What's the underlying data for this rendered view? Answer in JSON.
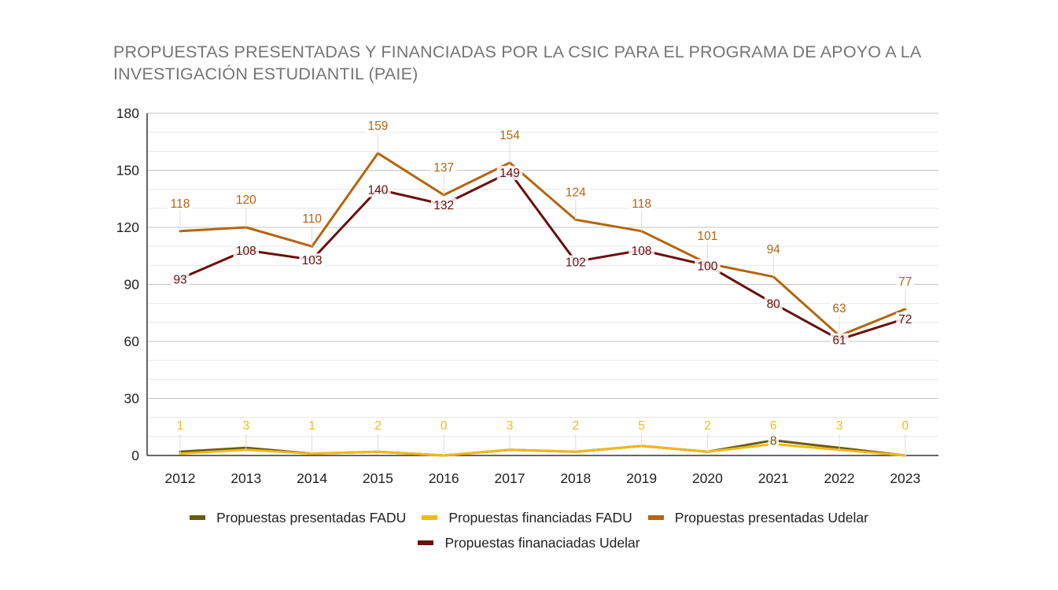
{
  "chart_data": {
    "type": "line",
    "title": "PROPUESTAS PRESENTADAS Y FINANCIADAS POR LA CSIC PARA EL PROGRAMA DE APOYO A LA INVESTIGACIÓN ESTUDIANTIL (PAIE)",
    "xlabel": "",
    "ylabel": "",
    "categories": [
      "2012",
      "2013",
      "2014",
      "2015",
      "2016",
      "2017",
      "2018",
      "2019",
      "2020",
      "2021",
      "2022",
      "2023"
    ],
    "ylim": [
      0,
      180
    ],
    "yticks": [
      "0",
      "30",
      "60",
      "90",
      "120",
      "150",
      "180"
    ],
    "grid": true,
    "legend_position": "bottom",
    "series": [
      {
        "name": "Propuestas presentadas FADU",
        "color": "#6b5a0f",
        "values": [
          2,
          4,
          1,
          2,
          0,
          3,
          2,
          5,
          2,
          8,
          4,
          0
        ],
        "labels": [
          "",
          "",
          "",
          "",
          "",
          "",
          "",
          "",
          "",
          "8",
          "",
          ""
        ]
      },
      {
        "name": "Propuestas financiadas FADU",
        "color": "#f2b816",
        "values": [
          1,
          3,
          1,
          2,
          0,
          3,
          2,
          5,
          2,
          6,
          3,
          0
        ],
        "labels": [
          "1",
          "3",
          "1",
          "2",
          "0",
          "3",
          "2",
          "5",
          "2",
          "6",
          "3",
          "0"
        ]
      },
      {
        "name": "Propuestas presentadas Udelar",
        "color": "#b5650f",
        "values": [
          118,
          120,
          110,
          159,
          137,
          154,
          124,
          118,
          101,
          94,
          63,
          77
        ],
        "labels": [
          "118",
          "120",
          "110",
          "159",
          "137",
          "154",
          "124",
          "118",
          "101",
          "94",
          "63",
          "77"
        ]
      },
      {
        "name": "Propuestas finanaciadas Udelar",
        "color": "#6b0e0e",
        "values": [
          93,
          108,
          103,
          140,
          132,
          149,
          102,
          108,
          100,
          80,
          61,
          72
        ],
        "labels": [
          "93",
          "108",
          "103",
          "140",
          "132",
          "149",
          "102",
          "108",
          "100",
          "80",
          "61",
          "72"
        ]
      }
    ]
  }
}
